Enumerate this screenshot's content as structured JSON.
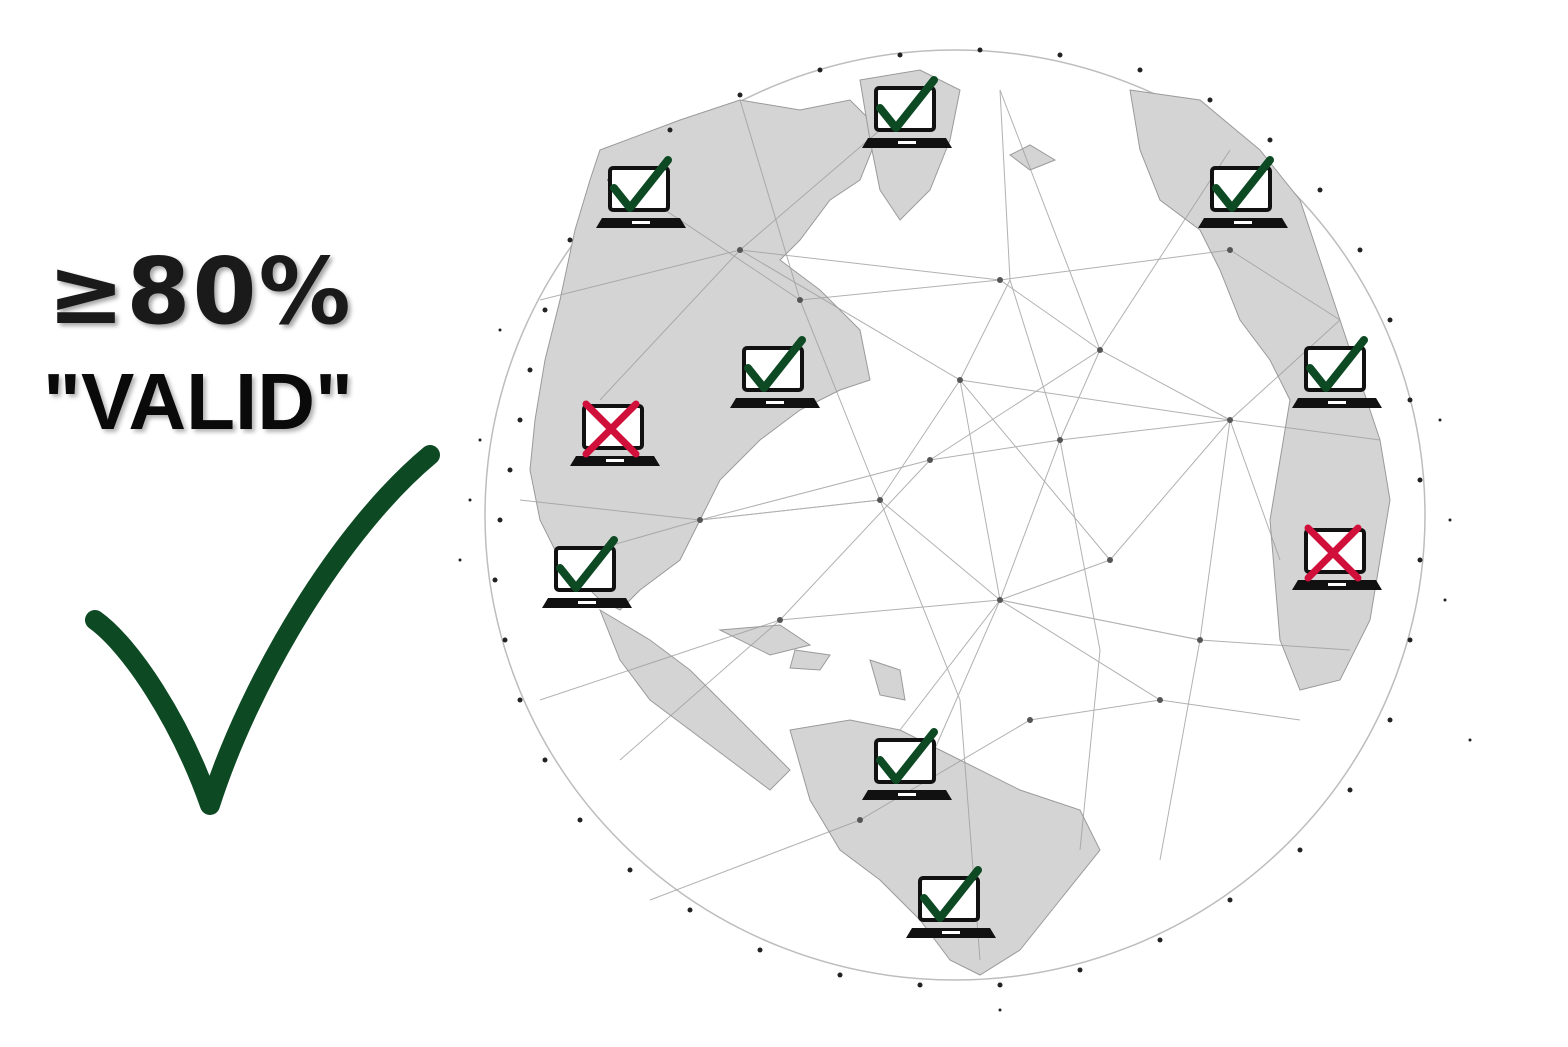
{
  "consensus": {
    "threshold_label": "≥80%",
    "verdict_label": "\"VALID\"",
    "check_color": "#0d4a24",
    "reject_color": "#d0103a"
  },
  "globe": {
    "icon": "network-globe-icon",
    "nodes": [
      {
        "id": "node-1",
        "status": "valid"
      },
      {
        "id": "node-2",
        "status": "valid"
      },
      {
        "id": "node-3",
        "status": "valid"
      },
      {
        "id": "node-4",
        "status": "valid"
      },
      {
        "id": "node-5",
        "status": "invalid"
      },
      {
        "id": "node-6",
        "status": "valid"
      },
      {
        "id": "node-7",
        "status": "valid"
      },
      {
        "id": "node-8",
        "status": "invalid"
      },
      {
        "id": "node-9",
        "status": "valid"
      },
      {
        "id": "node-10",
        "status": "valid"
      }
    ]
  }
}
